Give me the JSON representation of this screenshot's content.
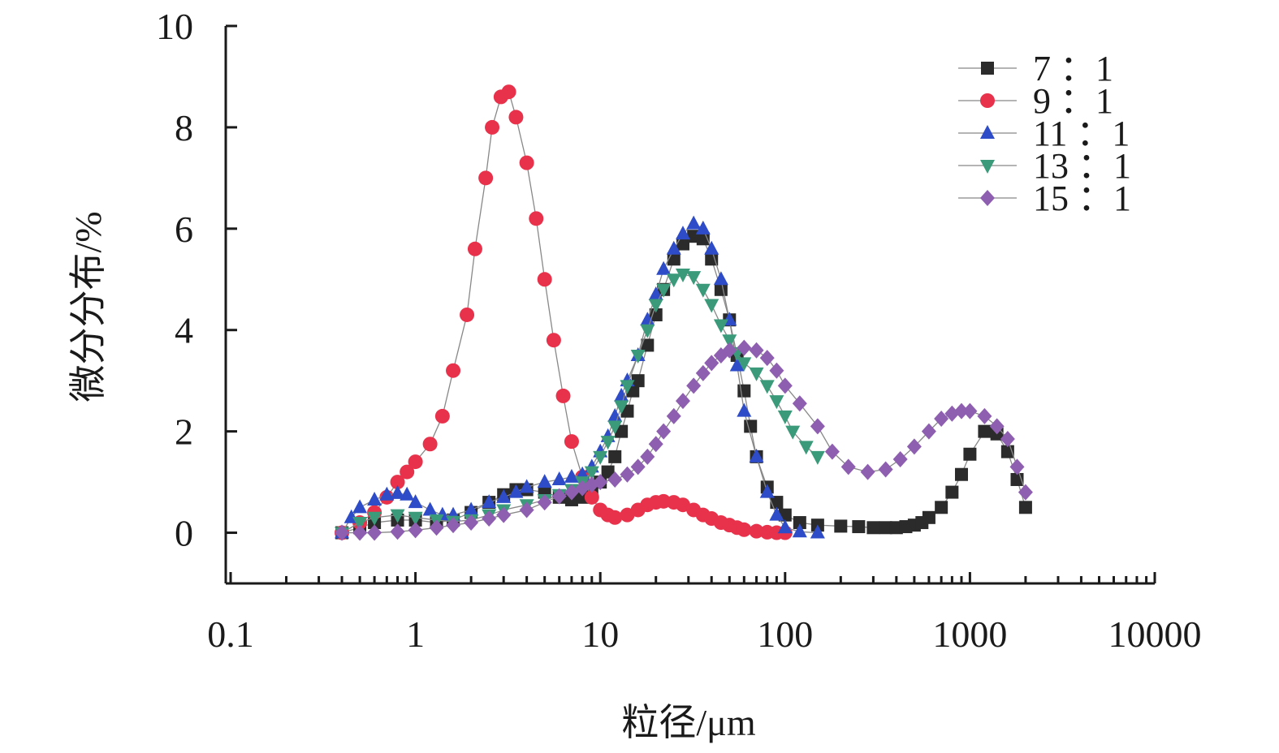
{
  "chart_data": {
    "type": "scatter",
    "title": "",
    "xlabel": "粒径/μm",
    "ylabel": "微分分布/%",
    "x_scale": "log",
    "xlim": [
      0.1,
      10000
    ],
    "ylim": [
      -1,
      10
    ],
    "x_ticks": [
      0.1,
      1,
      10,
      100,
      1000,
      10000
    ],
    "x_tick_labels": [
      "0.1",
      "1",
      "10",
      "100",
      "1000",
      "10000"
    ],
    "y_ticks": [
      0,
      2,
      4,
      6,
      8,
      10
    ],
    "y_tick_labels": [
      "0",
      "2",
      "4",
      "6",
      "8",
      "10"
    ],
    "grid": false,
    "legend_position": "top-right",
    "series": [
      {
        "name": "7 ：1",
        "marker": "square",
        "color": "#2b2b2b",
        "points": [
          [
            0.4,
            0
          ],
          [
            0.5,
            0.1
          ],
          [
            0.6,
            0.2
          ],
          [
            0.8,
            0.25
          ],
          [
            1,
            0.25
          ],
          [
            1.3,
            0.2
          ],
          [
            1.6,
            0.25
          ],
          [
            2,
            0.4
          ],
          [
            2.5,
            0.6
          ],
          [
            3,
            0.75
          ],
          [
            3.5,
            0.85
          ],
          [
            4,
            0.85
          ],
          [
            5,
            0.8
          ],
          [
            6,
            0.7
          ],
          [
            7,
            0.65
          ],
          [
            8,
            0.7
          ],
          [
            9,
            0.85
          ],
          [
            10,
            1.0
          ],
          [
            11,
            1.2
          ],
          [
            12,
            1.5
          ],
          [
            13,
            2.0
          ],
          [
            14,
            2.4
          ],
          [
            15,
            2.8
          ],
          [
            16,
            3.0
          ],
          [
            18,
            3.7
          ],
          [
            20,
            4.3
          ],
          [
            22,
            4.8
          ],
          [
            25,
            5.4
          ],
          [
            28,
            5.7
          ],
          [
            32,
            5.85
          ],
          [
            36,
            5.8
          ],
          [
            40,
            5.4
          ],
          [
            45,
            4.8
          ],
          [
            50,
            4.2
          ],
          [
            55,
            3.5
          ],
          [
            60,
            2.8
          ],
          [
            65,
            2.1
          ],
          [
            70,
            1.5
          ],
          [
            80,
            0.9
          ],
          [
            90,
            0.6
          ],
          [
            100,
            0.35
          ],
          [
            120,
            0.2
          ],
          [
            150,
            0.15
          ],
          [
            200,
            0.13
          ],
          [
            250,
            0.12
          ],
          [
            300,
            0.1
          ],
          [
            350,
            0.1
          ],
          [
            400,
            0.1
          ],
          [
            450,
            0.12
          ],
          [
            500,
            0.15
          ],
          [
            550,
            0.2
          ],
          [
            600,
            0.3
          ],
          [
            700,
            0.5
          ],
          [
            800,
            0.8
          ],
          [
            900,
            1.15
          ],
          [
            1000,
            1.55
          ],
          [
            1200,
            2.0
          ],
          [
            1400,
            1.95
          ],
          [
            1600,
            1.6
          ],
          [
            1800,
            1.05
          ],
          [
            2000,
            0.5
          ]
        ]
      },
      {
        "name": "9 ：1",
        "marker": "circle",
        "color": "#e8314a",
        "points": [
          [
            0.4,
            0
          ],
          [
            0.5,
            0.2
          ],
          [
            0.6,
            0.4
          ],
          [
            0.7,
            0.7
          ],
          [
            0.8,
            1.0
          ],
          [
            0.9,
            1.2
          ],
          [
            1,
            1.4
          ],
          [
            1.2,
            1.75
          ],
          [
            1.4,
            2.3
          ],
          [
            1.6,
            3.2
          ],
          [
            1.9,
            4.3
          ],
          [
            2.1,
            5.6
          ],
          [
            2.4,
            7.0
          ],
          [
            2.6,
            8.0
          ],
          [
            2.9,
            8.6
          ],
          [
            3.2,
            8.7
          ],
          [
            3.5,
            8.2
          ],
          [
            4.0,
            7.3
          ],
          [
            4.5,
            6.2
          ],
          [
            5,
            5.0
          ],
          [
            5.6,
            3.8
          ],
          [
            6.3,
            2.7
          ],
          [
            7,
            1.8
          ],
          [
            8,
            1.1
          ],
          [
            9,
            0.7
          ],
          [
            10,
            0.45
          ],
          [
            11,
            0.35
          ],
          [
            12,
            0.3
          ],
          [
            14,
            0.35
          ],
          [
            16,
            0.45
          ],
          [
            18,
            0.55
          ],
          [
            20,
            0.6
          ],
          [
            22,
            0.62
          ],
          [
            25,
            0.6
          ],
          [
            28,
            0.55
          ],
          [
            32,
            0.45
          ],
          [
            36,
            0.35
          ],
          [
            40,
            0.28
          ],
          [
            45,
            0.2
          ],
          [
            50,
            0.15
          ],
          [
            55,
            0.1
          ],
          [
            60,
            0.06
          ],
          [
            70,
            0.03
          ],
          [
            80,
            0.01
          ],
          [
            90,
            0
          ],
          [
            100,
            0
          ]
        ]
      },
      {
        "name": "11 ：1",
        "marker": "triangle-up",
        "color": "#2e4cc8",
        "points": [
          [
            0.4,
            0
          ],
          [
            0.45,
            0.3
          ],
          [
            0.5,
            0.5
          ],
          [
            0.6,
            0.65
          ],
          [
            0.7,
            0.75
          ],
          [
            0.8,
            0.78
          ],
          [
            0.9,
            0.75
          ],
          [
            1,
            0.6
          ],
          [
            1.2,
            0.45
          ],
          [
            1.4,
            0.35
          ],
          [
            1.6,
            0.35
          ],
          [
            2,
            0.45
          ],
          [
            2.5,
            0.6
          ],
          [
            3,
            0.7
          ],
          [
            3.5,
            0.8
          ],
          [
            4,
            0.9
          ],
          [
            5,
            1.0
          ],
          [
            6,
            1.05
          ],
          [
            7,
            1.1
          ],
          [
            8,
            1.15
          ],
          [
            9,
            1.3
          ],
          [
            10,
            1.6
          ],
          [
            11,
            1.9
          ],
          [
            12,
            2.3
          ],
          [
            13,
            2.7
          ],
          [
            14,
            3.0
          ],
          [
            16,
            3.5
          ],
          [
            18,
            4.2
          ],
          [
            20,
            4.7
          ],
          [
            22,
            5.2
          ],
          [
            25,
            5.6
          ],
          [
            28,
            5.9
          ],
          [
            32,
            6.1
          ],
          [
            36,
            6.0
          ],
          [
            40,
            5.6
          ],
          [
            45,
            5.0
          ],
          [
            50,
            4.2
          ],
          [
            55,
            3.3
          ],
          [
            60,
            2.4
          ],
          [
            70,
            1.5
          ],
          [
            80,
            0.8
          ],
          [
            90,
            0.35
          ],
          [
            100,
            0.1
          ],
          [
            120,
            0.02
          ],
          [
            150,
            0
          ]
        ]
      },
      {
        "name": "13 ：1",
        "marker": "triangle-down",
        "color": "#3a9a7a",
        "points": [
          [
            0.4,
            0
          ],
          [
            0.5,
            0.2
          ],
          [
            0.6,
            0.3
          ],
          [
            0.8,
            0.35
          ],
          [
            1,
            0.3
          ],
          [
            1.3,
            0.25
          ],
          [
            1.6,
            0.22
          ],
          [
            2,
            0.25
          ],
          [
            2.5,
            0.35
          ],
          [
            3,
            0.45
          ],
          [
            4,
            0.55
          ],
          [
            5,
            0.65
          ],
          [
            6,
            0.75
          ],
          [
            7,
            0.85
          ],
          [
            8,
            1.0
          ],
          [
            9,
            1.2
          ],
          [
            10,
            1.5
          ],
          [
            11,
            1.8
          ],
          [
            12,
            2.1
          ],
          [
            13,
            2.5
          ],
          [
            14,
            2.9
          ],
          [
            16,
            3.5
          ],
          [
            18,
            4.0
          ],
          [
            20,
            4.5
          ],
          [
            22,
            4.8
          ],
          [
            25,
            5.0
          ],
          [
            28,
            5.1
          ],
          [
            32,
            5.05
          ],
          [
            36,
            4.8
          ],
          [
            40,
            4.5
          ],
          [
            45,
            4.1
          ],
          [
            50,
            3.8
          ],
          [
            55,
            3.55
          ],
          [
            60,
            3.35
          ],
          [
            70,
            3.15
          ],
          [
            80,
            2.9
          ],
          [
            90,
            2.6
          ],
          [
            100,
            2.3
          ],
          [
            110,
            2.0
          ],
          [
            130,
            1.7
          ],
          [
            150,
            1.5
          ]
        ]
      },
      {
        "name": "15 ：1",
        "marker": "diamond",
        "color": "#8e5fb0",
        "points": [
          [
            0.4,
            0
          ],
          [
            0.5,
            0
          ],
          [
            0.6,
            0
          ],
          [
            0.8,
            0.02
          ],
          [
            1,
            0.05
          ],
          [
            1.3,
            0.1
          ],
          [
            1.6,
            0.15
          ],
          [
            2,
            0.2
          ],
          [
            2.5,
            0.28
          ],
          [
            3,
            0.35
          ],
          [
            4,
            0.45
          ],
          [
            5,
            0.6
          ],
          [
            6,
            0.72
          ],
          [
            7,
            0.8
          ],
          [
            8,
            0.88
          ],
          [
            9,
            0.95
          ],
          [
            10,
            1.0
          ],
          [
            12,
            1.05
          ],
          [
            14,
            1.15
          ],
          [
            16,
            1.3
          ],
          [
            18,
            1.5
          ],
          [
            20,
            1.75
          ],
          [
            22,
            2.0
          ],
          [
            25,
            2.3
          ],
          [
            28,
            2.6
          ],
          [
            32,
            2.9
          ],
          [
            36,
            3.15
          ],
          [
            40,
            3.35
          ],
          [
            45,
            3.5
          ],
          [
            50,
            3.6
          ],
          [
            60,
            3.65
          ],
          [
            70,
            3.6
          ],
          [
            80,
            3.45
          ],
          [
            90,
            3.2
          ],
          [
            100,
            2.9
          ],
          [
            120,
            2.55
          ],
          [
            150,
            2.1
          ],
          [
            180,
            1.6
          ],
          [
            220,
            1.3
          ],
          [
            280,
            1.2
          ],
          [
            350,
            1.25
          ],
          [
            420,
            1.45
          ],
          [
            500,
            1.7
          ],
          [
            600,
            2.0
          ],
          [
            700,
            2.25
          ],
          [
            800,
            2.35
          ],
          [
            900,
            2.4
          ],
          [
            1000,
            2.4
          ],
          [
            1200,
            2.3
          ],
          [
            1400,
            2.1
          ],
          [
            1600,
            1.85
          ],
          [
            1800,
            1.3
          ],
          [
            2000,
            0.8
          ]
        ]
      }
    ]
  }
}
